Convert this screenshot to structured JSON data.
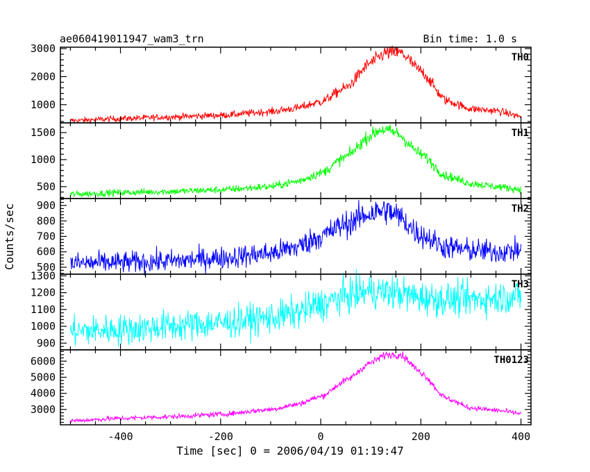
{
  "header": {
    "title": "ae060419011947_wam3_trn",
    "bin_time": "Bin time: 1.0 s"
  },
  "axes": {
    "ylabel": "Counts/sec",
    "xlabel": "Time [sec] 0 = 2006/04/19 01:19:47",
    "x_ticks": [
      -400,
      -200,
      0,
      200,
      400
    ],
    "xlim": [
      -520,
      420
    ]
  },
  "chart_data": [
    {
      "type": "line",
      "name": "TH0",
      "color": "#ff0000",
      "ylim": [
        350,
        3050
      ],
      "y_ticks": [
        1000,
        2000,
        3000
      ],
      "x": [
        -500,
        -400,
        -300,
        -200,
        -100,
        -50,
        0,
        50,
        100,
        130,
        160,
        200,
        250,
        300,
        350,
        400
      ],
      "values": [
        430,
        500,
        560,
        620,
        750,
        870,
        1100,
        1600,
        2500,
        2850,
        2850,
        2200,
        1150,
        850,
        780,
        580
      ],
      "noise": 50
    },
    {
      "type": "line",
      "name": "TH1",
      "color": "#00ff00",
      "ylim": [
        280,
        1680
      ],
      "y_ticks": [
        500,
        1000,
        1500
      ],
      "x": [
        -500,
        -400,
        -300,
        -200,
        -100,
        -50,
        0,
        50,
        100,
        120,
        150,
        200,
        250,
        300,
        350,
        400
      ],
      "values": [
        360,
        390,
        410,
        440,
        500,
        590,
        750,
        1050,
        1450,
        1560,
        1500,
        1100,
        700,
        560,
        500,
        450
      ],
      "noise": 30
    },
    {
      "type": "line",
      "name": "TH2",
      "color": "#0000ff",
      "ylim": [
        455,
        945
      ],
      "y_ticks": [
        500,
        600,
        700,
        800,
        900
      ],
      "x": [
        -500,
        -400,
        -300,
        -200,
        -100,
        -50,
        0,
        50,
        100,
        130,
        150,
        200,
        250,
        300,
        350,
        400
      ],
      "values": [
        525,
        530,
        540,
        560,
        590,
        630,
        700,
        780,
        850,
        870,
        840,
        710,
        630,
        610,
        600,
        610
      ],
      "noise": 35
    },
    {
      "type": "line",
      "name": "TH3",
      "color": "#00ffff",
      "ylim": [
        860,
        1310
      ],
      "y_ticks": [
        900,
        1000,
        1100,
        1200,
        1300
      ],
      "x": [
        -500,
        -400,
        -300,
        -200,
        -100,
        -50,
        0,
        50,
        100,
        150,
        200,
        250,
        300,
        350,
        400
      ],
      "values": [
        970,
        980,
        1000,
        1020,
        1050,
        1080,
        1130,
        1180,
        1210,
        1200,
        1170,
        1160,
        1160,
        1170,
        1180
      ],
      "noise": 45
    },
    {
      "type": "line",
      "name": "TH0123",
      "color": "#ff00ff",
      "ylim": [
        2050,
        6700
      ],
      "y_ticks": [
        3000,
        4000,
        5000,
        6000
      ],
      "x": [
        -500,
        -400,
        -300,
        -200,
        -100,
        -50,
        0,
        50,
        100,
        130,
        160,
        200,
        250,
        300,
        350,
        400
      ],
      "values": [
        2300,
        2450,
        2550,
        2700,
        3000,
        3300,
        3800,
        4800,
        5900,
        6400,
        6400,
        5300,
        3700,
        3100,
        2950,
        2750
      ],
      "noise": 70
    }
  ]
}
